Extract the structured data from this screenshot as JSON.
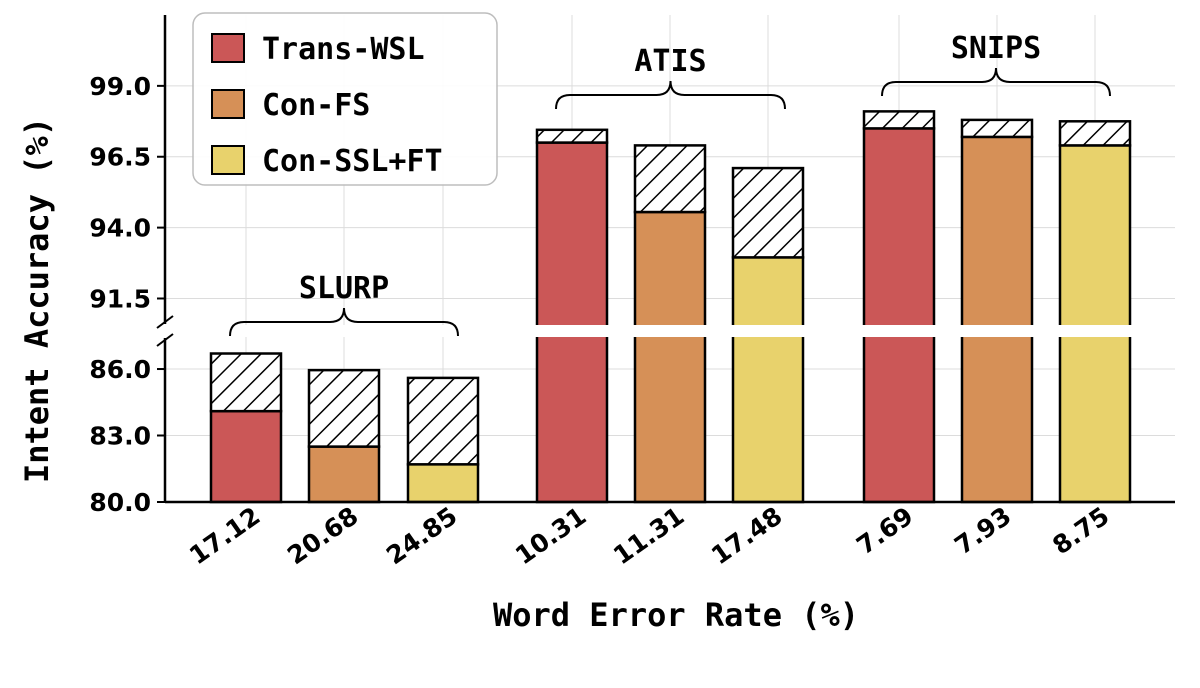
{
  "chart_data": {
    "type": "bar",
    "xlabel": "Word Error Rate (%)",
    "ylabel": "Intent Accuracy (%)",
    "y_ticks": [
      "80.0",
      "83.0",
      "86.0",
      "91.5",
      "94.0",
      "96.5",
      "99.0"
    ],
    "lower_ylim": [
      80.0,
      87.4
    ],
    "upper_ylim": [
      90.6,
      101.5
    ],
    "grid": true,
    "broken_y_axis": true,
    "legend": {
      "placement": "top-left",
      "entries": [
        {
          "name": "Trans-WSL",
          "color": "#cb5757"
        },
        {
          "name": "Con-FS",
          "color": "#d69057"
        },
        {
          "name": "Con-SSL+FT",
          "color": "#e8d26c"
        }
      ]
    },
    "hatch_meaning": "",
    "groups": [
      {
        "name": "SLURP",
        "bars": [
          {
            "wer": "17.12",
            "series": "Trans-WSL",
            "value": 84.1,
            "hatched_top": 86.7
          },
          {
            "wer": "20.68",
            "series": "Con-FS",
            "value": 82.5,
            "hatched_top": 85.95
          },
          {
            "wer": "24.85",
            "series": "Con-SSL+FT",
            "value": 81.7,
            "hatched_top": 85.6
          }
        ]
      },
      {
        "name": "ATIS",
        "bars": [
          {
            "wer": "10.31",
            "series": "Trans-WSL",
            "value": 97.0,
            "hatched_top": 97.45
          },
          {
            "wer": "11.31",
            "series": "Con-FS",
            "value": 94.55,
            "hatched_top": 96.9
          },
          {
            "wer": "17.48",
            "series": "Con-SSL+FT",
            "value": 92.95,
            "hatched_top": 96.1
          }
        ]
      },
      {
        "name": "SNIPS",
        "bars": [
          {
            "wer": "7.69",
            "series": "Trans-WSL",
            "value": 97.5,
            "hatched_top": 98.1
          },
          {
            "wer": "7.93",
            "series": "Con-FS",
            "value": 97.2,
            "hatched_top": 97.8
          },
          {
            "wer": "8.75",
            "series": "Con-SSL+FT",
            "value": 96.9,
            "hatched_top": 97.75
          }
        ]
      }
    ]
  }
}
